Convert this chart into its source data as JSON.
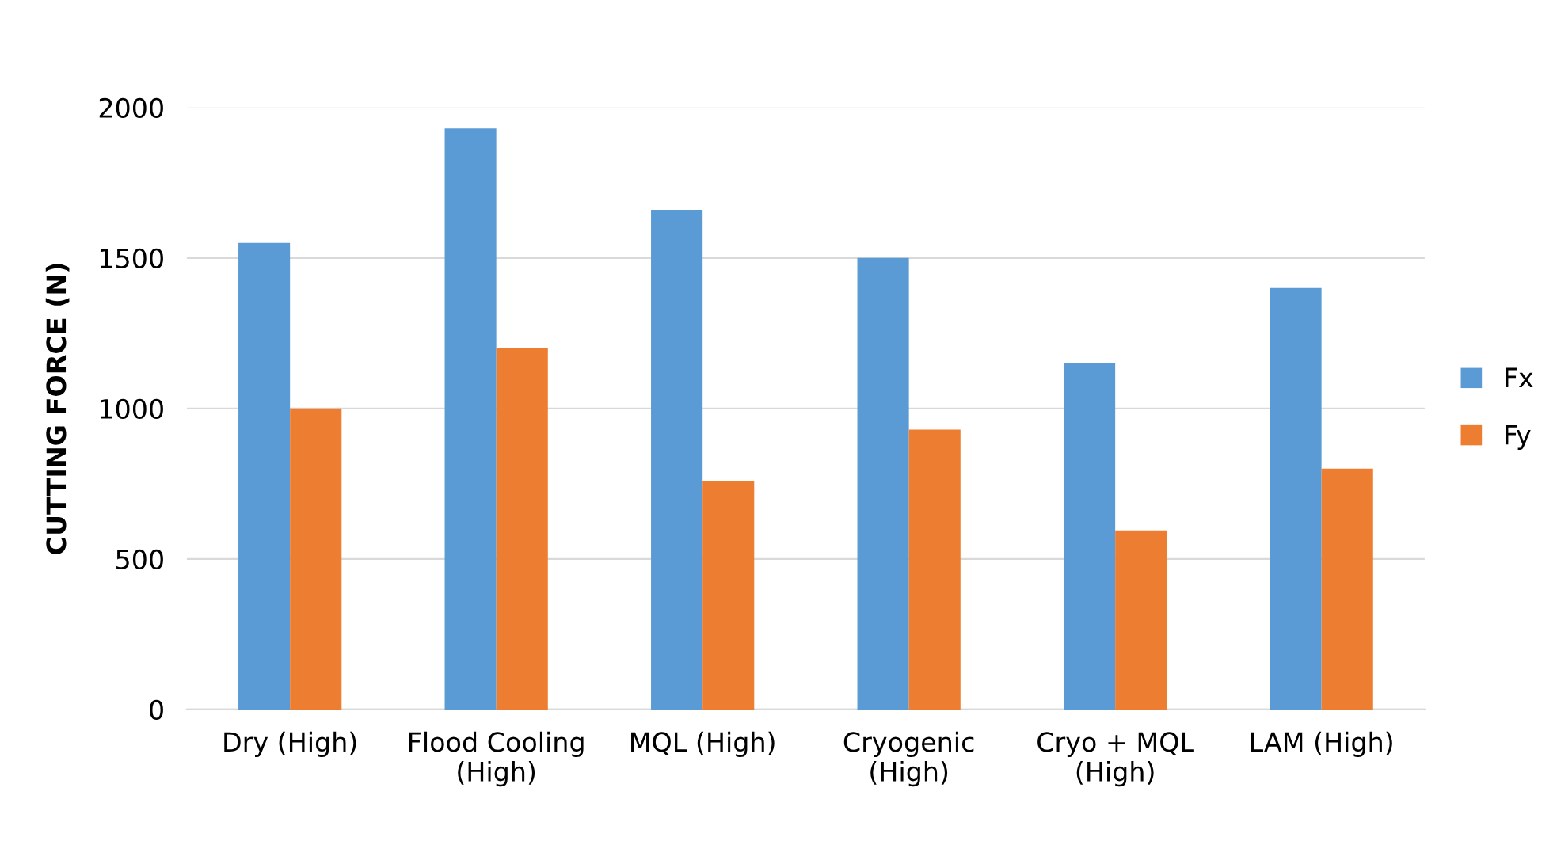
{
  "chart_data": {
    "type": "bar",
    "ylabel": "CUTTING FORCE (N)",
    "categories": [
      "Dry (High)",
      "Flood Cooling\n(High)",
      "MQL (High)",
      "Cryogenic\n(High)",
      "Cryo + MQL\n(High)",
      "LAM (High)"
    ],
    "series": [
      {
        "name": "Fx",
        "color": "#5b9bd5",
        "values": [
          1550,
          1930,
          1660,
          1500,
          1150,
          1400
        ]
      },
      {
        "name": "Fy",
        "color": "#ed7d31",
        "values": [
          1000,
          1200,
          760,
          930,
          595,
          800
        ]
      }
    ],
    "ylim": [
      0,
      2000
    ],
    "yticks": [
      0,
      500,
      1000,
      1500,
      2000
    ],
    "grid": "y",
    "legend": "right"
  }
}
